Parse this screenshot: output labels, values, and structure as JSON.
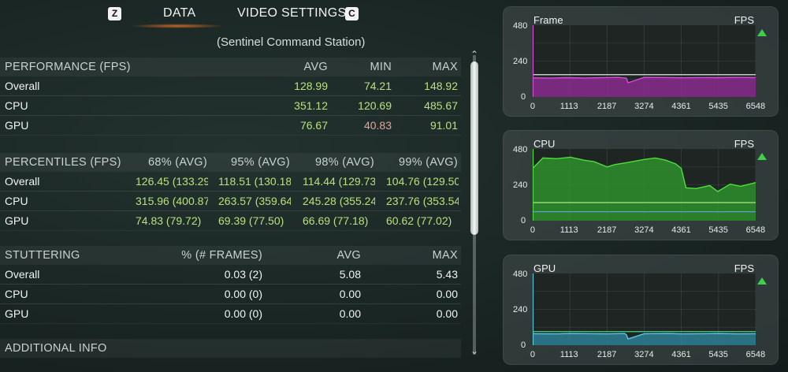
{
  "topbar": {
    "left_key": "Z",
    "tab_data": "DATA",
    "tab_video": "VIDEO SETTINGS",
    "right_key": "C"
  },
  "subtitle": "(Sentinel Command Station)",
  "performance": {
    "title": "PERFORMANCE (FPS)",
    "headers": [
      "AVG",
      "MIN",
      "MAX"
    ],
    "rows": [
      {
        "label": "Overall",
        "avg": "128.99",
        "min": "74.21",
        "max": "148.92"
      },
      {
        "label": "CPU",
        "avg": "351.12",
        "min": "120.69",
        "max": "485.67"
      },
      {
        "label": "GPU",
        "avg": "76.67",
        "min": "40.83",
        "max": "91.01"
      }
    ]
  },
  "percentiles": {
    "title": "PERCENTILES (FPS)",
    "headers": [
      "68% (AVG)",
      "95% (AVG)",
      "98% (AVG)",
      "99% (AVG)"
    ],
    "rows": [
      {
        "label": "Overall",
        "values": [
          "126.45 (133.29",
          "118.51 (130.18",
          "114.44 (129.73",
          "104.76 (129.50"
        ]
      },
      {
        "label": "CPU",
        "values": [
          "315.96 (400.87",
          "263.57 (359.64",
          "245.28 (355.24",
          "237.76 (353.54"
        ]
      },
      {
        "label": "GPU",
        "values": [
          "74.83 (79.72)",
          "69.39 (77.50)",
          "66.69 (77.18)",
          "60.62 (77.02)"
        ]
      }
    ]
  },
  "stuttering": {
    "title": "STUTTERING",
    "headers": [
      "% (# FRAMES)",
      "AVG",
      "MAX"
    ],
    "rows": [
      {
        "label": "Overall",
        "pct": "0.03 (2)",
        "avg": "5.08",
        "max": "5.43"
      },
      {
        "label": "CPU",
        "pct": "0.00 (0)",
        "avg": "0.00",
        "max": "0.00"
      },
      {
        "label": "GPU",
        "pct": "0.00 (0)",
        "avg": "0.00",
        "max": "0.00"
      }
    ]
  },
  "additional_info": "ADDITIONAL INFO",
  "chart_data": [
    {
      "type": "line",
      "title": "Frame",
      "unit_label": "FPS",
      "ylim": [
        0,
        480
      ],
      "yticks": [
        "480",
        "240",
        "0"
      ],
      "xticks": [
        "0",
        "1113",
        "2187",
        "3274",
        "4361",
        "5435",
        "6548"
      ],
      "xlim": [
        0,
        6548
      ],
      "color": "#d24fd6",
      "fill": "#8a2a8e",
      "series": [
        {
          "x": [
            0,
            500,
            1000,
            1500,
            2187,
            2500,
            2750,
            2800,
            3274,
            4000,
            4361,
            5000,
            5435,
            6000,
            6548
          ],
          "values": [
            128,
            126,
            129,
            127,
            130,
            131,
            126,
            95,
            131,
            130,
            128,
            130,
            129,
            131,
            130
          ]
        }
      ],
      "ref_lines": [
        {
          "value": 149,
          "color": "#e2e6e4"
        }
      ]
    },
    {
      "type": "line",
      "title": "CPU",
      "unit_label": "FPS",
      "ylim": [
        0,
        480
      ],
      "yticks": [
        "480",
        "240",
        "0"
      ],
      "xticks": [
        "0",
        "1113",
        "2187",
        "3274",
        "4361",
        "5435",
        "6548"
      ],
      "xlim": [
        0,
        6548
      ],
      "color": "#4de03a",
      "fill": "#2f8f2c",
      "series": [
        {
          "x": [
            0,
            300,
            700,
            1113,
            1500,
            1800,
            2187,
            2400,
            2800,
            3274,
            3600,
            3900,
            4200,
            4361,
            4500,
            4800,
            5200,
            5435,
            5800,
            6100,
            6548
          ],
          "values": [
            350,
            420,
            415,
            425,
            405,
            395,
            360,
            375,
            390,
            410,
            420,
            405,
            380,
            350,
            220,
            215,
            235,
            195,
            245,
            230,
            255
          ]
        }
      ],
      "ref_lines": [
        {
          "value": 121,
          "color": "#9be07c"
        },
        {
          "value": 60,
          "color": "#5aa0c8"
        }
      ]
    },
    {
      "type": "line",
      "title": "GPU",
      "unit_label": "FPS",
      "ylim": [
        0,
        480
      ],
      "yticks": [
        "480",
        "240",
        "0"
      ],
      "xticks": [
        "0",
        "1113",
        "2187",
        "3274",
        "4361",
        "5435",
        "6548"
      ],
      "xlim": [
        0,
        6548
      ],
      "color": "#5ec8e0",
      "fill": "#2c7f94",
      "series": [
        {
          "x": [
            0,
            700,
            1113,
            1800,
            2187,
            2700,
            2750,
            2800,
            3274,
            4000,
            4361,
            5000,
            5435,
            6000,
            6548
          ],
          "values": [
            77,
            76,
            78,
            77,
            76,
            78,
            70,
            42,
            77,
            78,
            76,
            77,
            78,
            76,
            77
          ]
        }
      ],
      "ref_lines": [
        {
          "value": 91,
          "color": "#4ad08a"
        }
      ]
    }
  ]
}
